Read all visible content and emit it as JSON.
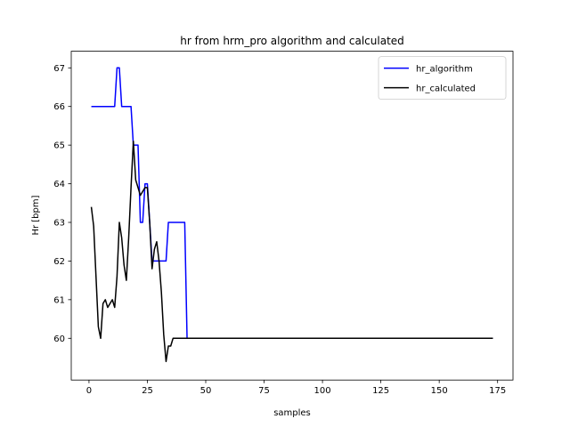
{
  "chart_data": {
    "type": "line",
    "title": "hr from hrm_pro algorithm and calculated",
    "xlabel": "samples",
    "ylabel": "Hr [bpm]",
    "xlim": [
      -7.6,
      181.6
    ],
    "ylim": [
      58.92,
      67.43
    ],
    "xticks": [
      0,
      25,
      50,
      75,
      100,
      125,
      150,
      175
    ],
    "yticks": [
      60,
      61,
      62,
      63,
      64,
      65,
      66,
      67
    ],
    "grid": false,
    "legend_position": "top-right",
    "series": [
      {
        "name": "hr_algorithm",
        "color": "#0000ff",
        "x": [
          1,
          2,
          3,
          4,
          5,
          6,
          7,
          8,
          9,
          10,
          11,
          12,
          13,
          14,
          15,
          16,
          17,
          18,
          19,
          20,
          21,
          22,
          23,
          24,
          25,
          26,
          27,
          28,
          29,
          30,
          31,
          32,
          33,
          34,
          35,
          36,
          37,
          38,
          39,
          40,
          41,
          42,
          43,
          44,
          45,
          46,
          47,
          48,
          49,
          50,
          60,
          70,
          80,
          90,
          100,
          110,
          120,
          130,
          140,
          150,
          160,
          173
        ],
        "y": [
          66,
          66,
          66,
          66,
          66,
          66,
          66,
          66,
          66,
          66,
          66,
          67,
          67,
          66,
          66,
          66,
          66,
          66,
          65,
          65,
          65,
          63,
          63,
          64,
          64,
          63,
          62,
          62,
          62,
          62,
          62,
          62,
          62,
          63,
          63,
          63,
          63,
          63,
          63,
          63,
          63,
          60,
          60,
          60,
          60,
          60,
          60,
          60,
          60,
          60,
          60,
          60,
          60,
          60,
          60,
          60,
          60,
          60,
          60,
          60,
          60,
          60
        ]
      },
      {
        "name": "hr_calculated",
        "color": "#000000",
        "x": [
          1,
          2,
          3,
          4,
          5,
          6,
          7,
          8,
          9,
          10,
          11,
          12,
          13,
          14,
          15,
          16,
          17,
          18,
          19,
          20,
          21,
          22,
          23,
          24,
          25,
          26,
          27,
          28,
          29,
          30,
          31,
          32,
          33,
          34,
          35,
          36,
          37,
          38,
          39,
          40,
          41,
          42,
          43,
          44,
          45,
          50,
          60,
          70,
          80,
          90,
          100,
          110,
          120,
          130,
          140,
          150,
          160,
          173
        ],
        "y": [
          63.4,
          62.9,
          61.6,
          60.3,
          60.0,
          60.9,
          61.0,
          60.8,
          60.9,
          61.0,
          60.8,
          61.6,
          63.0,
          62.6,
          61.9,
          61.5,
          62.6,
          63.9,
          65.1,
          64.1,
          63.9,
          63.7,
          63.8,
          63.9,
          63.9,
          63.0,
          61.8,
          62.3,
          62.5,
          62.0,
          61.2,
          60.1,
          59.4,
          59.8,
          59.8,
          60.0,
          60.0,
          60.0,
          60.0,
          60.0,
          60.0,
          60.0,
          60.0,
          60.0,
          60.0,
          60.0,
          60.0,
          60.0,
          60.0,
          60.0,
          60.0,
          60.0,
          60.0,
          60.0,
          60.0,
          60.0,
          60.0,
          60.0
        ]
      }
    ]
  }
}
